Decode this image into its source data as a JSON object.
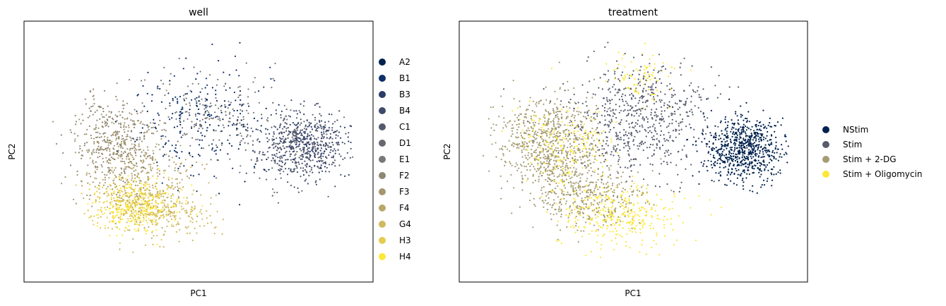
{
  "chart_data": [
    {
      "type": "scatter",
      "title": "well",
      "xlabel": "PC1",
      "ylabel": "PC2",
      "xticks": [],
      "yticks": [],
      "grid": false,
      "legend_position": "right",
      "categories": [
        "A2",
        "B1",
        "B3",
        "B4",
        "C1",
        "D1",
        "E1",
        "F2",
        "F3",
        "F4",
        "G4",
        "H3",
        "H4"
      ],
      "colors": [
        "#00224e",
        "#0d2f6a",
        "#2c3b68",
        "#3e4a6c",
        "#545a6c",
        "#666771",
        "#7a7775",
        "#8f8674",
        "#a49670",
        "#b9a76a",
        "#d0b95f",
        "#e5cb4f",
        "#fde737"
      ],
      "clusters": [
        {
          "name": "A2",
          "center": [
            0.05,
            0.15
          ],
          "sd": [
            0.45,
            0.38
          ],
          "n": 80
        },
        {
          "name": "B1",
          "center": [
            0.0,
            0.25
          ],
          "sd": [
            0.42,
            0.35
          ],
          "n": 170
        },
        {
          "name": "B3",
          "center": [
            0.8,
            0.05
          ],
          "sd": [
            0.28,
            0.22
          ],
          "n": 170
        },
        {
          "name": "B4",
          "center": [
            0.72,
            0.05
          ],
          "sd": [
            0.3,
            0.24
          ],
          "n": 180
        },
        {
          "name": "C1",
          "center": [
            0.78,
            0.03
          ],
          "sd": [
            0.27,
            0.22
          ],
          "n": 180
        },
        {
          "name": "D1",
          "center": [
            0.65,
            0.05
          ],
          "sd": [
            0.32,
            0.25
          ],
          "n": 170
        },
        {
          "name": "E1",
          "center": [
            0.1,
            0.3
          ],
          "sd": [
            0.4,
            0.35
          ],
          "n": 180
        },
        {
          "name": "F2",
          "center": [
            -0.6,
            0.12
          ],
          "sd": [
            0.28,
            0.3
          ],
          "n": 260
        },
        {
          "name": "F3",
          "center": [
            -0.55,
            -0.02
          ],
          "sd": [
            0.3,
            0.32
          ],
          "n": 260
        },
        {
          "name": "F4",
          "center": [
            -0.4,
            -0.25
          ],
          "sd": [
            0.32,
            0.28
          ],
          "n": 240
        },
        {
          "name": "G4",
          "center": [
            -0.2,
            -0.5
          ],
          "sd": [
            0.35,
            0.18
          ],
          "n": 150
        },
        {
          "name": "H3",
          "center": [
            -0.45,
            -0.4
          ],
          "sd": [
            0.28,
            0.18
          ],
          "n": 270
        },
        {
          "name": "H4",
          "center": [
            -0.45,
            -0.42
          ],
          "sd": [
            0.27,
            0.17
          ],
          "n": 280
        }
      ]
    },
    {
      "type": "scatter",
      "title": "treatment",
      "xlabel": "PC1",
      "ylabel": "PC2",
      "xticks": [],
      "yticks": [],
      "grid": false,
      "legend_position": "right",
      "categories": [
        "NStim",
        "Stim",
        "Stim + 2-DG",
        "Stim + Oligomycin"
      ],
      "colors": [
        "#00224e",
        "#575c6d",
        "#a59c74",
        "#fde737"
      ],
      "clusters": [
        {
          "name": "Stim",
          "center": [
            0.05,
            0.25
          ],
          "sd": [
            0.45,
            0.38
          ],
          "n": 650
        },
        {
          "name": "Stim + 2-DG",
          "center": [
            -0.6,
            0.05
          ],
          "sd": [
            0.32,
            0.33
          ],
          "n": 750
        },
        {
          "name": "Stim + 2-DG",
          "center": [
            -0.3,
            -0.35
          ],
          "sd": [
            0.35,
            0.22
          ],
          "n": 350
        },
        {
          "name": "Stim + Oligomycin",
          "center": [
            -0.5,
            0.05
          ],
          "sd": [
            0.3,
            0.32
          ],
          "n": 200
        },
        {
          "name": "Stim + Oligomycin",
          "center": [
            -0.1,
            -0.48
          ],
          "sd": [
            0.38,
            0.22
          ],
          "n": 350
        },
        {
          "name": "Stim + Oligomycin",
          "center": [
            0.05,
            0.55
          ],
          "sd": [
            0.22,
            0.2
          ],
          "n": 80
        },
        {
          "name": "NStim",
          "center": [
            0.78,
            0.02
          ],
          "sd": [
            0.25,
            0.22
          ],
          "n": 750
        }
      ]
    }
  ]
}
